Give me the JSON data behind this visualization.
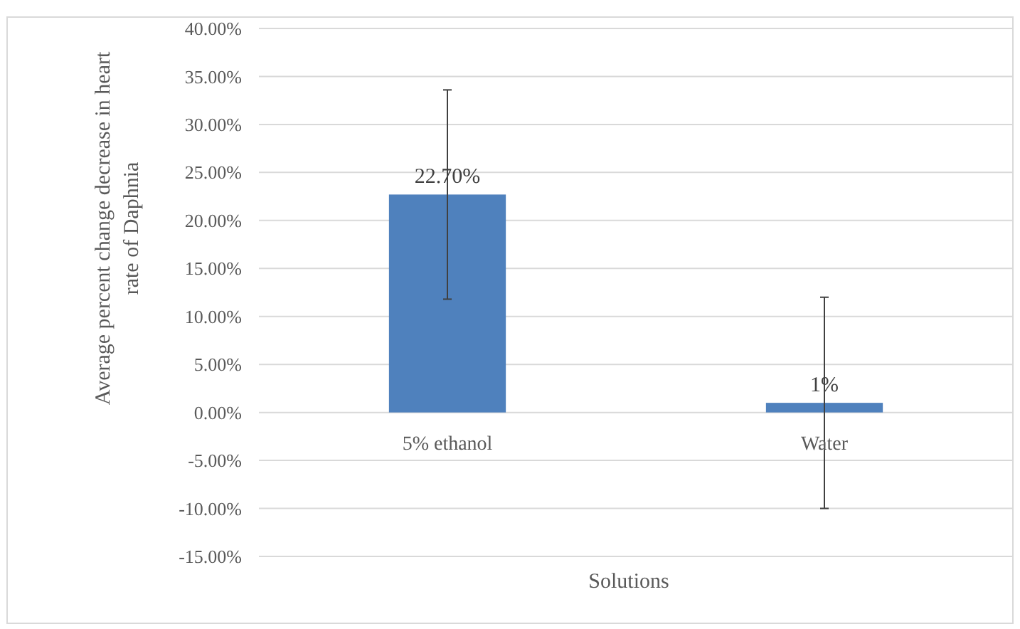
{
  "chart_data": {
    "type": "bar",
    "xlabel": "Solutions",
    "ylabel": "Average percent change decrease in heart rate of Daphnia",
    "categories": [
      "5% ethanol",
      "Water"
    ],
    "series": [
      {
        "color": "#4f81bd",
        "values": [
          22.7,
          1
        ],
        "errors": [
          10.9,
          11
        ],
        "value_labels": [
          "22.70%",
          "1%"
        ]
      }
    ],
    "ylim": [
      -15,
      40
    ],
    "yticks": [
      {
        "value": -15,
        "label": "-15.00%"
      },
      {
        "value": -10,
        "label": "-10.00%"
      },
      {
        "value": -5,
        "label": "-5.00%"
      },
      {
        "value": 0,
        "label": "0.00%"
      },
      {
        "value": 5,
        "label": "5.00%"
      },
      {
        "value": 10,
        "label": "10.00%"
      },
      {
        "value": 15,
        "label": "15.00%"
      },
      {
        "value": 20,
        "label": "20.00%"
      },
      {
        "value": 25,
        "label": "25.00%"
      },
      {
        "value": 30,
        "label": "30.00%"
      },
      {
        "value": 35,
        "label": "35.00%"
      },
      {
        "value": 40,
        "label": "40.00%"
      }
    ],
    "grid": "y"
  }
}
